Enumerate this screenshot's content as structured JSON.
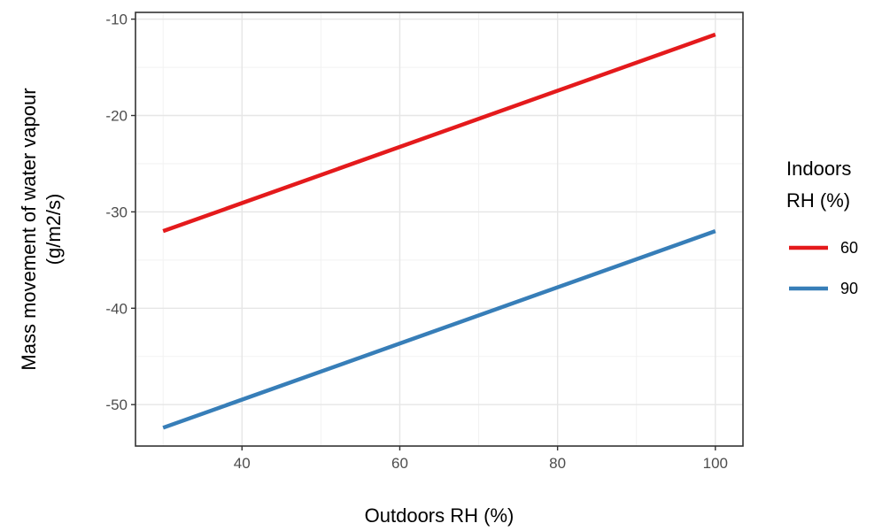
{
  "chart_data": {
    "type": "line",
    "title": "",
    "xlabel": "Outdoors RH (%)",
    "ylabel_lines": [
      "Mass movement of water vapour",
      "(g/m2/s)"
    ],
    "xlim": [
      26.5,
      103.5
    ],
    "ylim": [
      -54.3,
      -9.3
    ],
    "x_ticks": [
      40,
      60,
      80,
      100
    ],
    "y_ticks": [
      -10,
      -20,
      -30,
      -40,
      -50
    ],
    "x_minor": [
      30,
      50,
      70,
      90
    ],
    "y_minor": [
      -15,
      -25,
      -35,
      -45
    ],
    "grid": true,
    "legend": {
      "title_lines": [
        "Indoors",
        "RH (%)"
      ],
      "placement": "right"
    },
    "series": [
      {
        "name": "60",
        "color": "#e41a1c",
        "x": [
          30,
          100
        ],
        "y": [
          -32.0,
          -11.6
        ]
      },
      {
        "name": "90",
        "color": "#377eb8",
        "x": [
          30,
          100
        ],
        "y": [
          -52.4,
          -32.0
        ]
      }
    ]
  }
}
